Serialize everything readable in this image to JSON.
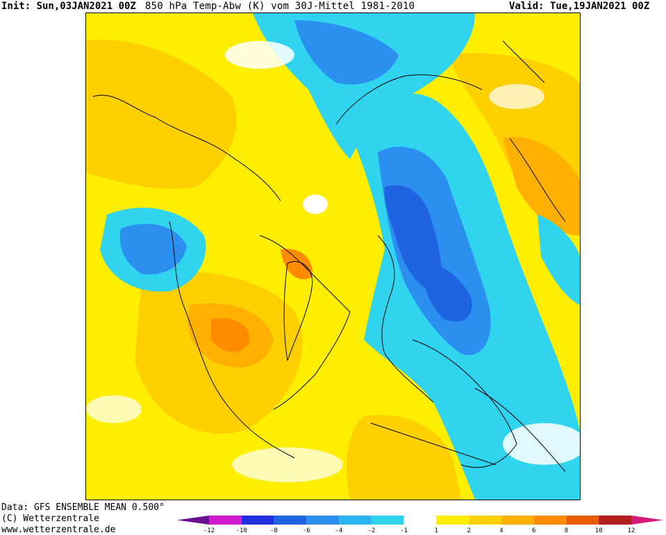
{
  "header": {
    "init": "Init: Sun,03JAN2021 00Z",
    "title": "850 hPa Temp-Abw (K) vom 30J-Mittel 1981-2010",
    "valid": "Valid: Tue,19JAN2021 00Z"
  },
  "footer": {
    "data_line": "Data: GFS ENSEMBLE MEAN 0.500°",
    "copyright": "(C) Wetterzentrale",
    "url": "www.wetterzentrale.de"
  },
  "legend": {
    "ticks": [
      "-12",
      "-10",
      "-8",
      "-6",
      "-4",
      "-2",
      "-1",
      "1",
      "2",
      "4",
      "6",
      "8",
      "10",
      "12"
    ],
    "colors": [
      "#6b0f8f",
      "#d11bd1",
      "#1f2fe0",
      "#1f63e0",
      "#2b8ff0",
      "#2bb2f0",
      "#31d4ee",
      "#ffffff",
      "#ffee00",
      "#ffd000",
      "#ffb000",
      "#ff8c00",
      "#e65c00",
      "#b01e1e",
      "#d81b7a"
    ]
  },
  "map_colors": {
    "cold_strong": "#1f63e0",
    "cold": "#2b8ff0",
    "cool": "#31d4ee",
    "neutral": "#ffffff",
    "warm_light": "#ffee00",
    "warm": "#ffd000",
    "warm_strong": "#ffb000",
    "hot": "#ff8c00",
    "coastline": "#000000"
  }
}
